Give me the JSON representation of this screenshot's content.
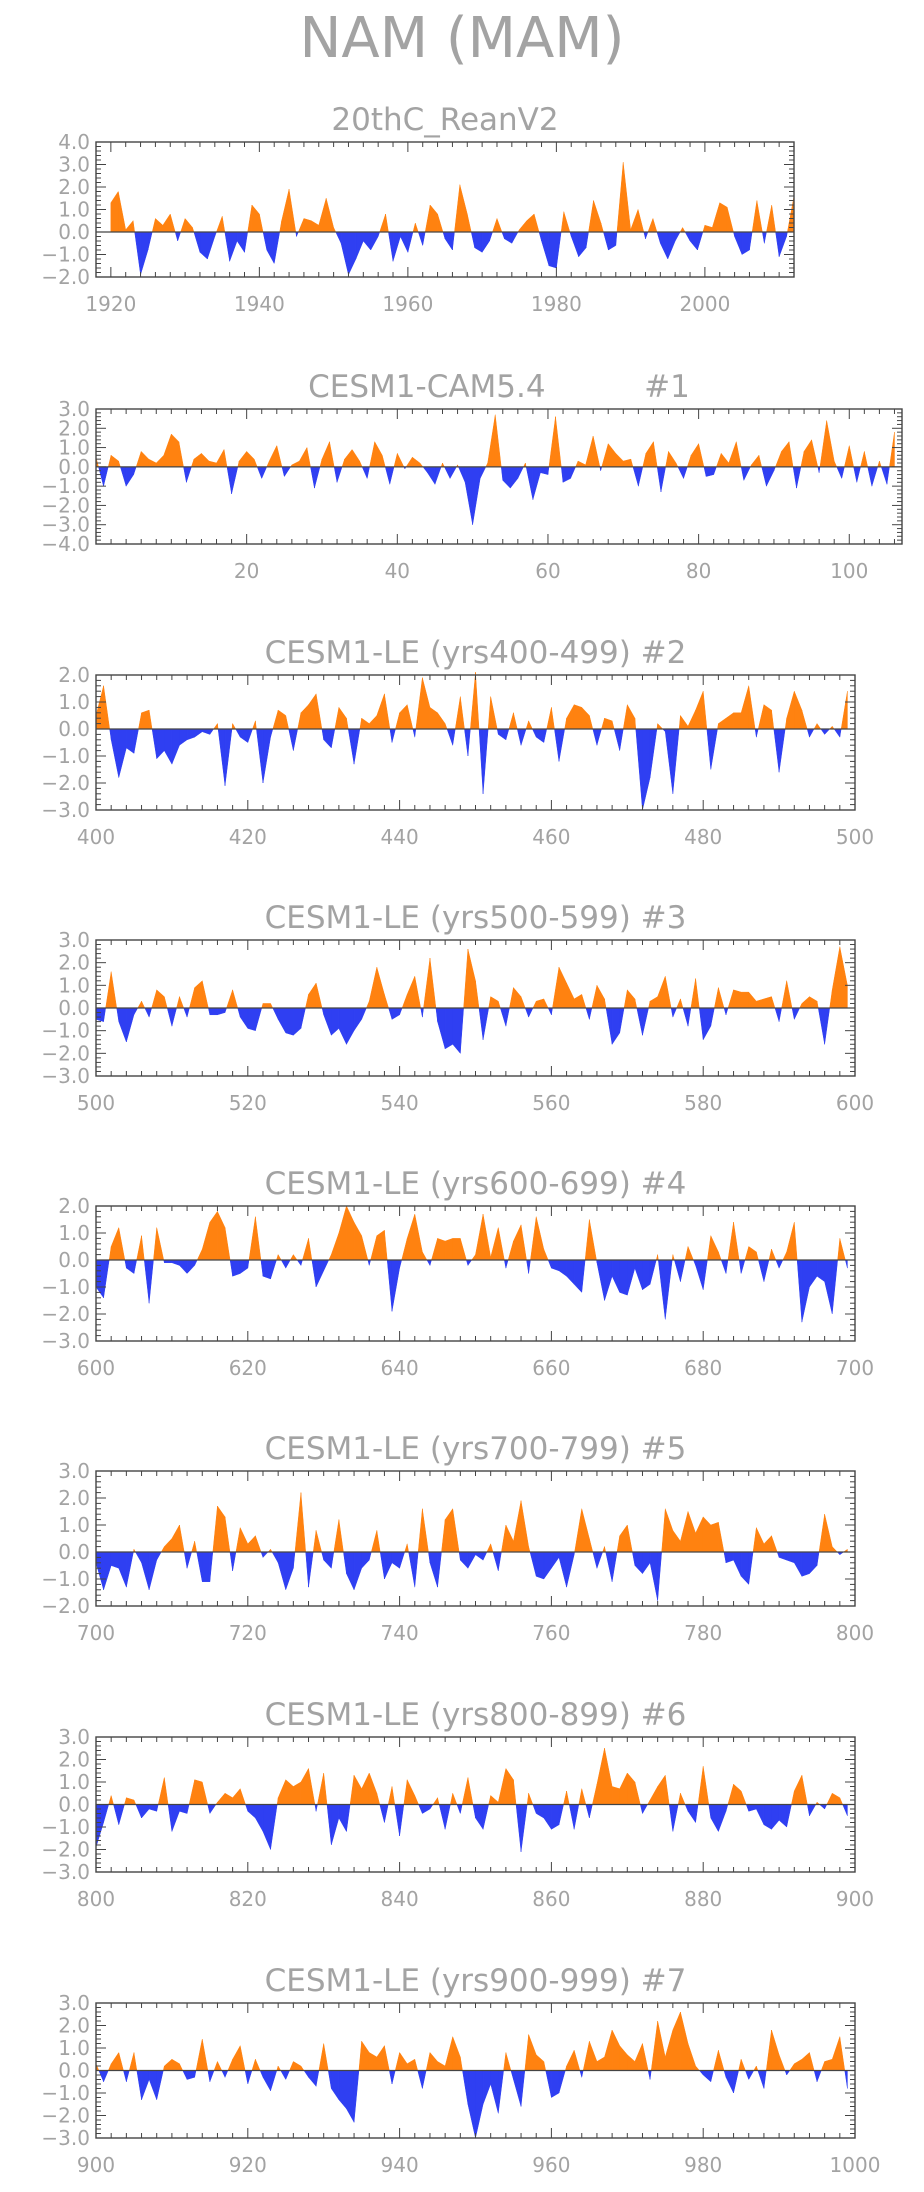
{
  "title": "NAM (MAM)",
  "colors": {
    "positive": "#ff8210",
    "negative": "#2f3ff2",
    "axis": "#444444",
    "text": "#a3a3a3"
  },
  "chart_data": [
    {
      "type": "area",
      "title": "20thC_ReanV2",
      "xlim": [
        1918,
        2012
      ],
      "ylim": [
        -2,
        4
      ],
      "xticks": [
        1920,
        1940,
        1960,
        1980,
        2000
      ],
      "yticks": [
        -2,
        -1,
        0,
        1,
        2,
        3,
        4
      ],
      "ylabels": [
        "−2.0",
        "−1.0",
        "0.0",
        "1.0",
        "2.0",
        "3.0",
        "4.0"
      ],
      "x_start": 1920,
      "x_step": 1,
      "values": [
        1.3,
        1.8,
        0.1,
        0.5,
        -1.9,
        -0.8,
        0.6,
        0.3,
        0.8,
        -0.4,
        0.6,
        0.2,
        -0.9,
        -1.2,
        -0.2,
        0.7,
        -1.3,
        -0.4,
        -0.9,
        1.2,
        0.8,
        -0.8,
        -1.4,
        0.5,
        1.9,
        -0.2,
        0.6,
        0.5,
        0.3,
        1.5,
        0.2,
        -0.5,
        -1.9,
        -1.2,
        -0.4,
        -0.8,
        -0.2,
        0.8,
        -1.3,
        -0.2,
        -0.9,
        0.4,
        -0.6,
        1.2,
        0.8,
        -0.3,
        -0.8,
        2.1,
        0.8,
        -0.7,
        -0.9,
        -0.4,
        0.6,
        -0.3,
        -0.5,
        0.1,
        0.5,
        0.8,
        -0.4,
        -1.5,
        -1.6,
        0.9,
        -0.2,
        -1.1,
        -0.7,
        1.4,
        0.4,
        -0.8,
        -0.6,
        3.1,
        0.1,
        1.0,
        -0.3,
        0.6,
        -0.5,
        -1.2,
        -0.4,
        0.2,
        -0.4,
        -0.8,
        0.3,
        0.2,
        1.3,
        1.1,
        -0.2,
        -1.0,
        -0.8,
        1.4,
        -0.5,
        1.2,
        -1.1,
        -0.2,
        1.6
      ]
    },
    {
      "type": "area",
      "title": "CESM1-CAM5.4          #1",
      "xlim": [
        0,
        107
      ],
      "ylim": [
        -4,
        3
      ],
      "xticks": [
        20,
        40,
        60,
        80,
        100
      ],
      "yticks": [
        -4,
        -3,
        -2,
        -1,
        0,
        1,
        2,
        3
      ],
      "ylabels": [
        "−4.0",
        "−3.0",
        "−2.0",
        "−1.0",
        "0.0",
        "1.0",
        "2.0",
        "3.0"
      ],
      "x_start": 0,
      "x_step": 1,
      "values": [
        0.5,
        -1.0,
        0.6,
        0.3,
        -1.0,
        -0.4,
        0.8,
        0.4,
        0.2,
        0.6,
        1.7,
        1.3,
        -0.8,
        0.4,
        0.7,
        0.3,
        0.2,
        0.9,
        -1.4,
        0.3,
        0.8,
        0.4,
        -0.6,
        0.3,
        1.1,
        -0.5,
        0.1,
        0.3,
        1.0,
        -1.1,
        0.4,
        1.3,
        -0.8,
        0.4,
        0.9,
        0.3,
        -0.6,
        1.3,
        0.6,
        -0.9,
        0.7,
        -0.1,
        0.5,
        0.2,
        -0.3,
        -0.9,
        0.2,
        -0.6,
        0.1,
        -0.8,
        -3.0,
        -0.6,
        0.2,
        2.7,
        -0.7,
        -1.1,
        -0.6,
        0.2,
        -1.7,
        -0.3,
        -0.4,
        2.6,
        -0.8,
        -0.6,
        0.3,
        0.1,
        1.6,
        -0.2,
        1.2,
        0.7,
        0.3,
        0.4,
        -1.0,
        0.7,
        1.3,
        -1.3,
        0.8,
        0.2,
        -0.6,
        0.6,
        1.2,
        -0.5,
        -0.4,
        0.7,
        0.2,
        1.3,
        -0.7,
        0.1,
        0.6,
        -1.0,
        -0.2,
        0.8,
        1.3,
        -1.1,
        0.8,
        1.4,
        -0.3,
        2.4,
        0.3,
        -0.6,
        1.1,
        -0.8,
        0.8,
        -1.0,
        0.3,
        -0.9,
        1.8
      ]
    },
    {
      "type": "area",
      "title": "CESM1-LE (yrs400-499) #2",
      "xlim": [
        400,
        500
      ],
      "ylim": [
        -3,
        2
      ],
      "xticks": [
        400,
        420,
        440,
        460,
        480,
        500
      ],
      "yticks": [
        -3,
        -2,
        -1,
        0,
        1,
        2
      ],
      "ylabels": [
        "−3.0",
        "−2.0",
        "−1.0",
        "0.0",
        "1.0",
        "2.0"
      ],
      "x_start": 400,
      "x_step": 1,
      "values": [
        0.5,
        1.6,
        -0.4,
        -1.8,
        -0.7,
        -0.9,
        0.6,
        0.7,
        -1.1,
        -0.8,
        -1.3,
        -0.6,
        -0.4,
        -0.3,
        -0.1,
        -0.2,
        0.2,
        -2.1,
        0.2,
        -0.3,
        -0.5,
        0.3,
        -2.0,
        -0.3,
        0.7,
        0.5,
        -0.8,
        0.6,
        0.9,
        1.3,
        -0.4,
        -0.7,
        0.8,
        0.4,
        -1.3,
        0.4,
        0.2,
        0.5,
        1.3,
        -0.5,
        0.6,
        0.9,
        -0.3,
        1.9,
        0.8,
        0.6,
        0.2,
        -0.6,
        1.2,
        -1.0,
        2.1,
        -2.4,
        1.2,
        -0.2,
        -0.4,
        0.6,
        -0.6,
        0.3,
        -0.3,
        -0.5,
        0.8,
        -1.2,
        0.4,
        0.9,
        0.8,
        0.5,
        -0.6,
        0.4,
        0.3,
        -0.8,
        0.9,
        0.4,
        -3.0,
        -1.8,
        0.2,
        -0.1,
        -2.4,
        0.5,
        0.1,
        0.7,
        1.4,
        -1.5,
        0.2,
        0.4,
        0.6,
        0.6,
        1.6,
        -0.3,
        0.9,
        0.7,
        -1.6,
        0.4,
        1.4,
        0.7,
        -0.3,
        0.2,
        -0.2,
        0.1,
        -0.3,
        1.4
      ]
    },
    {
      "type": "area",
      "title": "CESM1-LE (yrs500-599) #3",
      "xlim": [
        500,
        600
      ],
      "ylim": [
        -3,
        3
      ],
      "xticks": [
        500,
        520,
        540,
        560,
        580,
        600
      ],
      "yticks": [
        -3,
        -2,
        -1,
        0,
        1,
        2,
        3
      ],
      "ylabels": [
        "−3.0",
        "−2.0",
        "−1.0",
        "0.0",
        "1.0",
        "2.0",
        "3.0"
      ],
      "x_start": 500,
      "x_step": 1,
      "values": [
        -0.5,
        -0.6,
        1.6,
        -0.6,
        -1.5,
        -0.3,
        0.3,
        -0.4,
        0.8,
        0.5,
        -0.8,
        0.5,
        -0.4,
        0.9,
        1.2,
        -0.3,
        -0.3,
        -0.2,
        0.8,
        -0.4,
        -0.9,
        -1.0,
        0.2,
        0.2,
        -0.5,
        -1.1,
        -1.2,
        -0.9,
        0.6,
        1.1,
        -0.3,
        -1.2,
        -0.9,
        -1.6,
        -1.0,
        -0.5,
        0.3,
        1.8,
        0.6,
        -0.5,
        -0.3,
        0.6,
        1.4,
        -0.4,
        2.2,
        -0.6,
        -1.8,
        -1.6,
        -2.0,
        2.6,
        1.2,
        -1.4,
        0.5,
        0.3,
        -0.8,
        0.9,
        0.5,
        -0.4,
        0.3,
        0.4,
        -0.3,
        1.8,
        1.1,
        0.4,
        0.6,
        -0.5,
        1.0,
        0.4,
        -1.6,
        -1.1,
        0.8,
        0.4,
        -1.2,
        0.3,
        0.5,
        1.4,
        -0.4,
        0.4,
        -0.8,
        1.3,
        -1.4,
        -0.8,
        0.9,
        -0.3,
        0.8,
        0.7,
        0.7,
        0.3,
        0.4,
        0.5,
        -0.6,
        1.2,
        -0.5,
        0.2,
        0.5,
        0.3,
        -1.6,
        0.8,
        2.7,
        1.0
      ]
    },
    {
      "type": "area",
      "title": "CESM1-LE (yrs600-699) #4",
      "xlim": [
        600,
        700
      ],
      "ylim": [
        -3,
        2
      ],
      "xticks": [
        600,
        620,
        640,
        660,
        680,
        700
      ],
      "yticks": [
        -3,
        -2,
        -1,
        0,
        1,
        2
      ],
      "ylabels": [
        "−3.0",
        "−2.0",
        "−1.0",
        "0.0",
        "1.0",
        "2.0"
      ],
      "x_start": 600,
      "x_step": 1,
      "values": [
        -1.0,
        -1.4,
        0.5,
        1.2,
        -0.3,
        -0.5,
        0.9,
        -1.6,
        1.2,
        -0.1,
        -0.1,
        -0.2,
        -0.5,
        -0.2,
        0.4,
        1.4,
        1.8,
        1.2,
        -0.6,
        -0.5,
        -0.3,
        1.6,
        -0.6,
        -0.7,
        0.2,
        -0.3,
        0.2,
        -0.2,
        0.8,
        -1.0,
        -0.4,
        0.2,
        1.0,
        2.0,
        1.4,
        0.9,
        -0.2,
        0.9,
        1.1,
        -1.9,
        -0.3,
        0.8,
        1.7,
        0.3,
        -0.2,
        0.8,
        0.7,
        0.8,
        0.8,
        -0.2,
        0.2,
        1.7,
        0.1,
        1.2,
        -0.3,
        0.7,
        1.3,
        -0.5,
        1.6,
        0.4,
        -0.3,
        -0.4,
        -0.6,
        -0.9,
        -1.2,
        1.5,
        -0.1,
        -1.5,
        -0.6,
        -1.2,
        -1.3,
        -0.3,
        -1.1,
        -0.9,
        0.2,
        -2.2,
        0.2,
        -0.8,
        0.5,
        -0.2,
        -1.1,
        0.9,
        0.3,
        -0.5,
        1.4,
        -0.5,
        0.5,
        0.3,
        -0.8,
        0.4,
        -0.3,
        0.3,
        1.4,
        -2.3,
        -1.0,
        -0.6,
        -0.8,
        -2.0,
        0.8,
        -0.3
      ]
    },
    {
      "type": "area",
      "title": "CESM1-LE (yrs700-799) #5",
      "xlim": [
        700,
        800
      ],
      "ylim": [
        -2,
        3
      ],
      "xticks": [
        700,
        720,
        740,
        760,
        780,
        800
      ],
      "yticks": [
        -2,
        -1,
        0,
        1,
        2,
        3
      ],
      "ylabels": [
        "−2.0",
        "−1.0",
        "0.0",
        "1.0",
        "2.0",
        "3.0"
      ],
      "x_start": 700,
      "x_step": 1,
      "values": [
        -0.4,
        -1.4,
        -0.5,
        -0.6,
        -1.3,
        0.1,
        -0.4,
        -1.4,
        -0.3,
        0.2,
        0.5,
        1.0,
        -0.6,
        0.4,
        -1.1,
        -1.1,
        1.7,
        1.3,
        -0.7,
        0.9,
        0.3,
        0.6,
        -0.2,
        0.1,
        -0.4,
        -1.4,
        -0.6,
        2.2,
        -1.3,
        0.8,
        -0.3,
        -0.6,
        1.2,
        -0.8,
        -1.4,
        -0.6,
        -0.3,
        0.8,
        -1.0,
        -0.4,
        -0.6,
        0.3,
        -1.3,
        1.6,
        -0.4,
        -1.3,
        1.2,
        1.6,
        -0.3,
        -0.6,
        -0.1,
        -0.3,
        0.3,
        -0.7,
        1.0,
        0.4,
        1.9,
        0.2,
        -0.9,
        -1.0,
        -0.6,
        -0.2,
        -1.3,
        -0.1,
        1.6,
        0.5,
        -0.6,
        0.2,
        -1.1,
        0.6,
        1.0,
        -0.5,
        -0.8,
        -0.4,
        -1.8,
        1.6,
        0.8,
        0.4,
        1.5,
        0.7,
        1.3,
        1.0,
        1.1,
        -0.4,
        -0.3,
        -0.9,
        -1.2,
        0.9,
        0.3,
        0.6,
        -0.2,
        -0.3,
        -0.4,
        -0.9,
        -0.8,
        -0.5,
        1.4,
        0.2,
        -0.1,
        0.1
      ]
    },
    {
      "type": "area",
      "title": "CESM1-LE (yrs800-899) #6",
      "xlim": [
        800,
        900
      ],
      "ylim": [
        -3,
        3
      ],
      "xticks": [
        800,
        820,
        840,
        860,
        880,
        900
      ],
      "yticks": [
        -3,
        -2,
        -1,
        0,
        1,
        2,
        3
      ],
      "ylabels": [
        "−3.0",
        "−2.0",
        "−1.0",
        "0.0",
        "1.0",
        "2.0",
        "3.0"
      ],
      "x_start": 800,
      "x_step": 1,
      "values": [
        -1.9,
        -0.8,
        0.4,
        -0.9,
        0.3,
        0.2,
        -0.6,
        -0.2,
        -0.3,
        1.2,
        -1.2,
        -0.3,
        -0.4,
        1.1,
        1.0,
        -0.4,
        0.1,
        0.5,
        0.3,
        0.7,
        -0.3,
        -0.6,
        -1.2,
        -2.0,
        0.3,
        1.1,
        0.8,
        1.0,
        1.6,
        -0.3,
        1.4,
        -1.8,
        -0.6,
        -1.2,
        1.3,
        0.7,
        1.4,
        0.5,
        -0.8,
        0.8,
        -1.4,
        1.1,
        0.4,
        -0.4,
        -0.2,
        0.3,
        -1.1,
        0.5,
        -0.4,
        1.2,
        -0.6,
        -1.1,
        0.4,
        0.1,
        1.6,
        1.1,
        -2.1,
        0.5,
        -0.4,
        -0.6,
        -1.1,
        -0.9,
        0.6,
        -1.1,
        0.7,
        -0.6,
        0.9,
        2.5,
        0.8,
        0.7,
        1.4,
        1.0,
        -0.4,
        0.2,
        0.8,
        1.3,
        -1.2,
        0.5,
        -0.3,
        -0.8,
        1.7,
        -0.6,
        -1.2,
        -0.3,
        0.9,
        0.6,
        -0.3,
        -0.2,
        -0.9,
        -1.1,
        -0.7,
        -1.0,
        0.6,
        1.3,
        -0.5,
        0.1,
        -0.2,
        0.5,
        0.3,
        -0.5
      ]
    },
    {
      "type": "area",
      "title": "CESM1-LE (yrs900-999) #7",
      "xlim": [
        900,
        1000
      ],
      "ylim": [
        -3,
        3
      ],
      "xticks": [
        900,
        920,
        940,
        960,
        980,
        1000
      ],
      "yticks": [
        -3,
        -2,
        -1,
        0,
        1,
        2,
        3
      ],
      "ylabels": [
        "−3.0",
        "−2.0",
        "−1.0",
        "0.0",
        "1.0",
        "2.0",
        "3.0"
      ],
      "x_start": 900,
      "x_step": 1,
      "values": [
        0.3,
        -0.5,
        0.3,
        0.8,
        -0.5,
        0.8,
        -1.3,
        -0.4,
        -1.3,
        0.2,
        0.5,
        0.3,
        -0.4,
        -0.3,
        1.4,
        -0.5,
        0.4,
        -0.3,
        0.5,
        1.1,
        -0.6,
        0.5,
        -0.3,
        -0.9,
        0.2,
        -0.4,
        0.4,
        0.2,
        -0.3,
        -0.7,
        1.2,
        -0.8,
        -1.3,
        -1.7,
        -2.3,
        1.3,
        0.8,
        0.6,
        1.1,
        -0.6,
        0.8,
        0.3,
        0.5,
        -0.8,
        0.8,
        0.4,
        0.2,
        1.5,
        0.6,
        -1.5,
        -3.0,
        -1.5,
        -0.6,
        -1.9,
        0.8,
        -0.4,
        -1.6,
        1.6,
        0.7,
        0.4,
        -1.2,
        -1.0,
        0.2,
        0.9,
        -0.3,
        1.3,
        0.4,
        0.6,
        1.8,
        1.1,
        0.7,
        0.4,
        1.2,
        -0.4,
        2.2,
        0.6,
        1.8,
        2.6,
        1.2,
        0.2,
        -0.2,
        -0.5,
        0.9,
        -0.3,
        -1.0,
        0.5,
        -0.4,
        0.2,
        -0.8,
        1.8,
        0.7,
        -0.2,
        0.3,
        0.5,
        0.8,
        -0.5,
        0.4,
        0.5,
        1.5,
        -0.8
      ]
    }
  ]
}
